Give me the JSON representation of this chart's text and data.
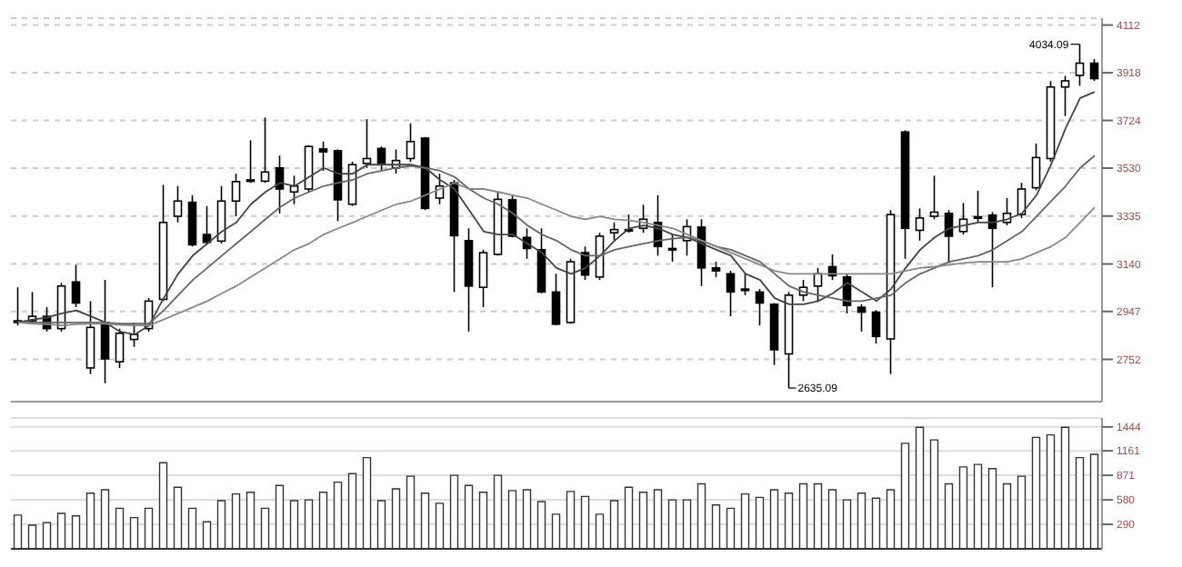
{
  "chart_data": [
    {
      "type": "candlestick",
      "categories": [
        null,
        null,
        null,
        null,
        null,
        null,
        null,
        null,
        null,
        null,
        null,
        null,
        null,
        null,
        null,
        null,
        null,
        null,
        null,
        null,
        null,
        null,
        null,
        null,
        null,
        null,
        null,
        null,
        null,
        null,
        null,
        null,
        null,
        null,
        null,
        null,
        null,
        null,
        null,
        null,
        null,
        null,
        null,
        null,
        null,
        null,
        null,
        null,
        null,
        null,
        null,
        null,
        null,
        null,
        null,
        null,
        null,
        null,
        null,
        null,
        null,
        null,
        null,
        null,
        null,
        null,
        null,
        null,
        null,
        null,
        null,
        null,
        null,
        null,
        null
      ],
      "ohlc": [
        [
          2902,
          3045,
          2890,
          2909
        ],
        [
          2909,
          3026,
          2897,
          2927
        ],
        [
          2927,
          2964,
          2865,
          2877
        ],
        [
          2877,
          3063,
          2865,
          3050
        ],
        [
          3067,
          3137,
          2964,
          2981
        ],
        [
          2717,
          2989,
          2692,
          2882
        ],
        [
          2902,
          3075,
          2655,
          2754
        ],
        [
          2742,
          2877,
          2717,
          2858
        ],
        [
          2833,
          2902,
          2803,
          2853
        ],
        [
          2877,
          3001,
          2865,
          2989
        ],
        [
          2996,
          3462,
          2989,
          3309
        ],
        [
          3334,
          3457,
          3309,
          3396
        ],
        [
          3391,
          3420,
          3211,
          3218
        ],
        [
          3260,
          3376,
          3218,
          3228
        ],
        [
          3233,
          3457,
          3223,
          3396
        ],
        [
          3396,
          3507,
          3334,
          3475
        ],
        [
          3477,
          3643,
          3470,
          3482
        ],
        [
          3477,
          3736,
          3470,
          3514
        ],
        [
          3531,
          3581,
          3346,
          3445
        ],
        [
          3433,
          3499,
          3383,
          3457
        ],
        [
          3445,
          3623,
          3433,
          3618
        ],
        [
          3608,
          3638,
          3519,
          3596
        ],
        [
          3601,
          3606,
          3314,
          3401
        ],
        [
          3383,
          3556,
          3376,
          3544
        ],
        [
          3549,
          3729,
          3531,
          3569
        ],
        [
          3610,
          3618,
          3519,
          3549
        ],
        [
          3531,
          3606,
          3507,
          3561
        ],
        [
          3569,
          3712,
          3556,
          3638
        ],
        [
          3652,
          3657,
          3359,
          3366
        ],
        [
          3408,
          3507,
          3383,
          3457
        ],
        [
          3470,
          3482,
          3026,
          3255
        ],
        [
          3235,
          3285,
          2865,
          3050
        ],
        [
          3045,
          3198,
          2964,
          3186
        ],
        [
          3179,
          3433,
          3174,
          3403
        ],
        [
          3401,
          3420,
          3248,
          3253
        ],
        [
          3248,
          3285,
          3161,
          3203
        ],
        [
          3198,
          3285,
          3021,
          3026
        ],
        [
          3026,
          3100,
          2890,
          2895
        ],
        [
          2902,
          3161,
          2897,
          3149
        ],
        [
          3186,
          3211,
          3075,
          3095
        ],
        [
          3087,
          3267,
          3075,
          3253
        ],
        [
          3267,
          3309,
          3235,
          3280
        ],
        [
          3280,
          3341,
          3267,
          3275
        ],
        [
          3285,
          3381,
          3267,
          3322
        ],
        [
          3309,
          3420,
          3174,
          3211
        ],
        [
          3203,
          3260,
          3149,
          3198
        ],
        [
          3235,
          3322,
          3174,
          3292
        ],
        [
          3290,
          3322,
          3050,
          3124
        ],
        [
          3124,
          3149,
          3087,
          3112
        ],
        [
          3100,
          3112,
          2927,
          3026
        ],
        [
          3038,
          3100,
          3013,
          3033
        ],
        [
          3026,
          3038,
          2890,
          2981
        ],
        [
          2976,
          2981,
          2729,
          2791
        ],
        [
          2774,
          3026,
          2635.09,
          3013
        ],
        [
          3013,
          3075,
          2989,
          3045
        ],
        [
          3050,
          3124,
          2989,
          3100
        ],
        [
          3129,
          3179,
          3075,
          3092
        ],
        [
          3087,
          3100,
          2939,
          2971
        ],
        [
          2964,
          2976,
          2865,
          2944
        ],
        [
          2944,
          2952,
          2816,
          2845
        ],
        [
          2835,
          3359,
          2692,
          3341
        ],
        [
          3677,
          3684,
          3161,
          3285
        ],
        [
          3277,
          3366,
          3235,
          3327
        ],
        [
          3334,
          3499,
          3322,
          3351
        ],
        [
          3346,
          3359,
          3144,
          3253
        ],
        [
          3272,
          3388,
          3260,
          3322
        ],
        [
          3329,
          3438,
          3309,
          3332
        ],
        [
          3339,
          3351,
          3045,
          3285
        ],
        [
          3309,
          3408,
          3297,
          3346
        ],
        [
          3341,
          3470,
          3327,
          3445
        ],
        [
          3450,
          3630,
          3440,
          3573
        ],
        [
          3569,
          3884,
          3556,
          3860
        ],
        [
          3860,
          3905,
          3742,
          3885
        ],
        [
          3907,
          4034.09,
          3865,
          3957
        ],
        [
          3957,
          3974,
          3885,
          3894
        ]
      ],
      "series": [
        {
          "type": "line",
          "color": "#444444",
          "values": [
            2902,
            2914,
            2922,
            2939,
            2951,
            2927,
            2902,
            2865,
            2853,
            2890,
            3001,
            3100,
            3174,
            3223,
            3272,
            3309,
            3383,
            3433,
            3470,
            3457,
            3494,
            3531,
            3507,
            3507,
            3544,
            3544,
            3544,
            3544,
            3531,
            3482,
            3445,
            3359,
            3272,
            3260,
            3260,
            3223,
            3186,
            3124,
            3100,
            3124,
            3174,
            3235,
            3285,
            3297,
            3285,
            3260,
            3248,
            3223,
            3198,
            3174,
            3100,
            3075,
            3001,
            2976,
            2976,
            2989,
            3021,
            3063,
            3026,
            2989,
            3038,
            3124,
            3198,
            3248,
            3285,
            3297,
            3309,
            3309,
            3322,
            3346,
            3420,
            3544,
            3692,
            3815,
            3840
          ]
        },
        {
          "type": "line",
          "color": "#666666",
          "values": [
            2902,
            2902,
            2902,
            2902,
            2902,
            2902,
            2902,
            2897,
            2897,
            2897,
            2951,
            3013,
            3075,
            3124,
            3174,
            3223,
            3272,
            3322,
            3371,
            3408,
            3433,
            3457,
            3470,
            3482,
            3507,
            3519,
            3531,
            3539,
            3531,
            3519,
            3494,
            3445,
            3408,
            3383,
            3346,
            3297,
            3260,
            3235,
            3198,
            3174,
            3174,
            3198,
            3211,
            3223,
            3235,
            3243,
            3248,
            3235,
            3211,
            3198,
            3174,
            3149,
            3100,
            3050,
            3026,
            3013,
            3001,
            2989,
            2989,
            3001,
            3013,
            3063,
            3100,
            3124,
            3149,
            3161,
            3174,
            3198,
            3235,
            3272,
            3334,
            3396,
            3457,
            3531,
            3581
          ]
        },
        {
          "type": "line",
          "color": "#888888",
          "values": [
            2902,
            2897,
            2895,
            2890,
            2895,
            2897,
            2897,
            2892,
            2890,
            2890,
            2914,
            2939,
            2964,
            2989,
            3021,
            3050,
            3087,
            3124,
            3161,
            3198,
            3223,
            3260,
            3285,
            3309,
            3334,
            3359,
            3383,
            3396,
            3420,
            3445,
            3470,
            3445,
            3445,
            3433,
            3420,
            3408,
            3383,
            3359,
            3334,
            3322,
            3334,
            3322,
            3317,
            3309,
            3297,
            3285,
            3260,
            3235,
            3211,
            3186,
            3161,
            3137,
            3112,
            3100,
            3100,
            3100,
            3100,
            3100,
            3100,
            3100,
            3100,
            3112,
            3124,
            3129,
            3137,
            3144,
            3149,
            3149,
            3149,
            3161,
            3186,
            3211,
            3248,
            3309,
            3371
          ]
        }
      ],
      "ylim": [
        2580,
        4140
      ],
      "yticks": [
        2752,
        2947,
        3140,
        3335,
        3530,
        3724,
        3918,
        4112
      ],
      "grid": "y",
      "tick_labels": "y",
      "annotations": [
        "4034.09",
        "2635.09"
      ]
    },
    {
      "type": "bar",
      "categories": [
        null,
        null,
        null,
        null,
        null,
        null,
        null,
        null,
        null,
        null,
        null,
        null,
        null,
        null,
        null,
        null,
        null,
        null,
        null,
        null,
        null,
        null,
        null,
        null,
        null,
        null,
        null,
        null,
        null,
        null,
        null,
        null,
        null,
        null,
        null,
        null,
        null,
        null,
        null,
        null,
        null,
        null,
        null,
        null,
        null,
        null,
        null,
        null,
        null,
        null,
        null,
        null,
        null,
        null,
        null,
        null,
        null,
        null,
        null,
        null,
        null,
        null,
        null,
        null,
        null,
        null,
        null,
        null,
        null,
        null,
        null,
        null,
        null,
        null,
        null
      ],
      "color": "#ffffff",
      "values": [
        400,
        280,
        310,
        420,
        390,
        660,
        700,
        480,
        370,
        480,
        1020,
        730,
        480,
        320,
        570,
        650,
        670,
        480,
        750,
        570,
        580,
        670,
        790,
        890,
        1080,
        570,
        710,
        860,
        660,
        540,
        870,
        750,
        670,
        870,
        690,
        700,
        560,
        410,
        680,
        620,
        410,
        570,
        730,
        670,
        700,
        580,
        580,
        770,
        520,
        480,
        650,
        610,
        700,
        660,
        770,
        770,
        700,
        580,
        660,
        600,
        700,
        1250,
        1440,
        1290,
        770,
        970,
        1000,
        950,
        770,
        860,
        1320,
        1350,
        1440,
        1080,
        1120
      ],
      "ylim": [
        0,
        1550
      ],
      "yticks": [
        290,
        580,
        871,
        1161,
        1444
      ],
      "grid": "y",
      "tick_labels": "y"
    }
  ]
}
